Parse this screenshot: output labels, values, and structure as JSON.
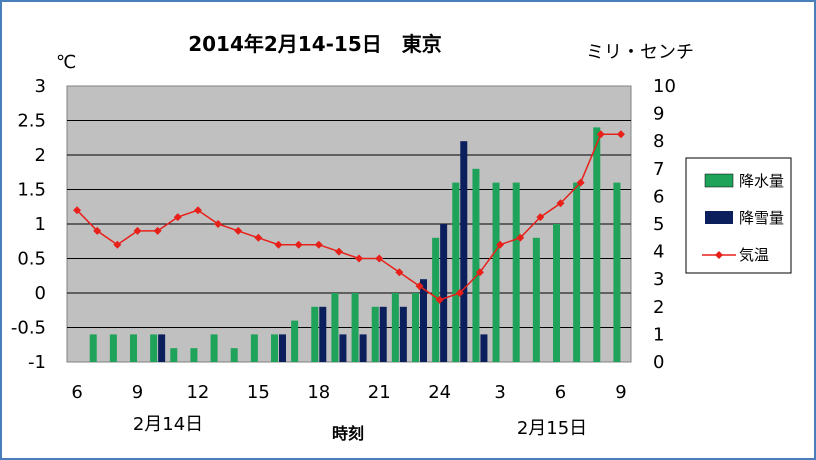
{
  "chart_data": {
    "type": "bar",
    "title": "2014年2月14-15日　東京",
    "xlabel": "時刻",
    "y_left_label": "℃",
    "y_right_label": "ミリ・センチ",
    "y_left_lim": [
      -1,
      3
    ],
    "y_left_ticks": [
      "-1",
      "-0.5",
      "0",
      "0.5",
      "1",
      "1.5",
      "2",
      "2.5",
      "3"
    ],
    "y_right_lim": [
      0,
      10
    ],
    "y_right_ticks": [
      "0",
      "1",
      "2",
      "3",
      "4",
      "5",
      "6",
      "7",
      "8",
      "9",
      "10"
    ],
    "x_tick_labels": [
      "6",
      "9",
      "12",
      "15",
      "18",
      "21",
      "24",
      "3",
      "6",
      "9"
    ],
    "date_labels": [
      "2月14日",
      "2月15日"
    ],
    "grid": true,
    "legend_position": "right",
    "x_hours": [
      6,
      7,
      8,
      9,
      10,
      11,
      12,
      13,
      14,
      15,
      16,
      17,
      18,
      19,
      20,
      21,
      22,
      23,
      24,
      25,
      26,
      27,
      28,
      29,
      30,
      31,
      32,
      33
    ],
    "series": [
      {
        "name": "降水量",
        "kind": "bar",
        "axis": "right",
        "color": "#1fa25a",
        "values": [
          0,
          1,
          1,
          1,
          1,
          0.5,
          0.5,
          1,
          0.5,
          1,
          1,
          1.5,
          2,
          2.5,
          2.5,
          2,
          2.5,
          2.5,
          4.5,
          6.5,
          7,
          6.5,
          6.5,
          4.5,
          5,
          6.5,
          8.5,
          6.5
        ]
      },
      {
        "name": "降雪量",
        "kind": "bar",
        "axis": "right",
        "color": "#0a1f5c",
        "values": [
          0,
          0,
          0,
          0,
          1,
          0,
          0,
          0,
          0,
          0,
          1,
          0,
          2,
          1,
          1,
          2,
          2,
          3,
          5,
          8,
          1,
          0,
          0,
          0,
          0,
          0,
          0,
          0
        ]
      },
      {
        "name": "気温",
        "kind": "line",
        "axis": "left",
        "color": "#e8201a",
        "values": [
          1.2,
          0.9,
          0.7,
          0.9,
          0.9,
          1.1,
          1.2,
          1.0,
          0.9,
          0.8,
          0.7,
          0.7,
          0.7,
          0.6,
          0.5,
          0.5,
          0.3,
          0.1,
          -0.1,
          0.0,
          0.3,
          0.7,
          0.8,
          1.1,
          1.3,
          1.6,
          2.3,
          2.3
        ]
      }
    ]
  }
}
